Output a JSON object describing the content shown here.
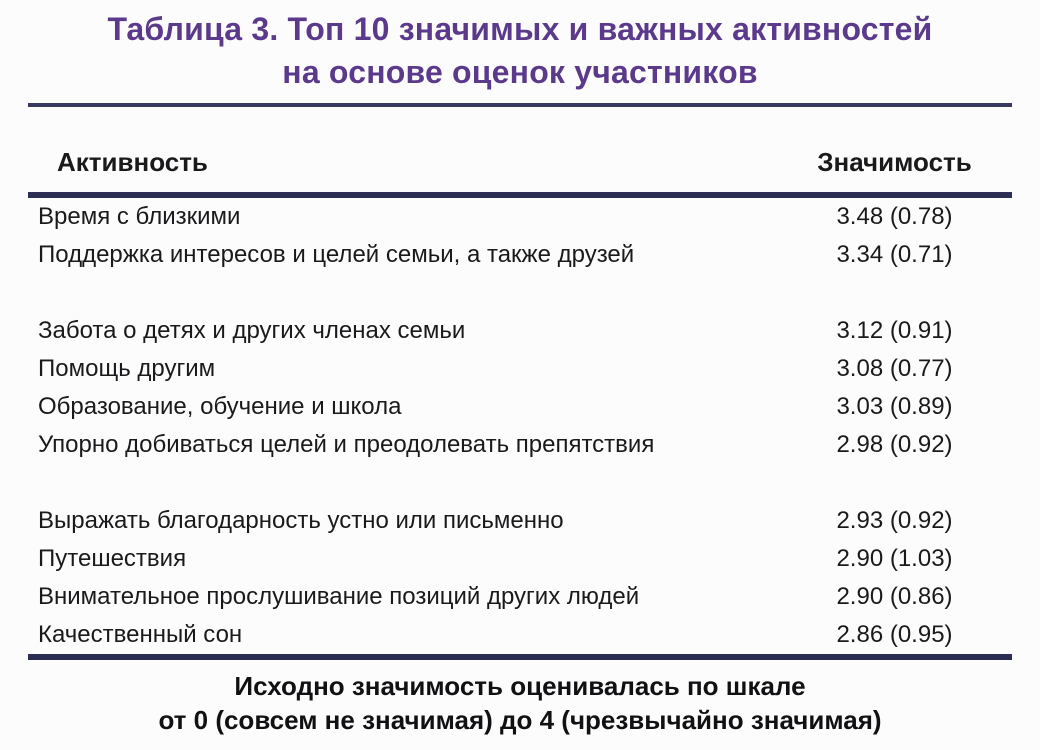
{
  "header": {
    "title_line1": "Таблица 3. Топ 10 значимых и важных активностей",
    "title_line2": "на основе оценок участников"
  },
  "table": {
    "col_activity": "Активность",
    "col_value": "Значимость",
    "rows": [
      {
        "activity": "Время с близкими",
        "value": "3.48 (0.78)"
      },
      {
        "activity": "Поддержка интересов и целей семьи, а также друзей",
        "value": "3.34 (0.71)"
      },
      {
        "activity": "Забота о детях и других членах семьи",
        "value": "3.12 (0.91)"
      },
      {
        "activity": "Помощь другим",
        "value": "3.08 (0.77)"
      },
      {
        "activity": "Образование, обучение и школа",
        "value": "3.03 (0.89)"
      },
      {
        "activity": "Упорно добиваться целей и преодолевать препятствия",
        "value": "2.98 (0.92)"
      },
      {
        "activity": "Выражать благодарность устно или письменно",
        "value": "2.93 (0.92)"
      },
      {
        "activity": "Путешествия",
        "value": "2.90 (1.03)"
      },
      {
        "activity": "Внимательное прослушивание позиций других людей",
        "value": "2.90 (0.86)"
      },
      {
        "activity": "Качественный сон",
        "value": "2.86 (0.95)"
      }
    ]
  },
  "footer": {
    "note_line1": "Исходно значимость оценивалась по шкале",
    "note_line2": "от 0 (совсем не значимая) до 4 (чрезвычайно значимая)"
  },
  "colors": {
    "title_purple": "#5b3a8c",
    "rule_navy": "#2b2d52",
    "text": "#1a1a1c",
    "background": "#fdfcfd"
  }
}
